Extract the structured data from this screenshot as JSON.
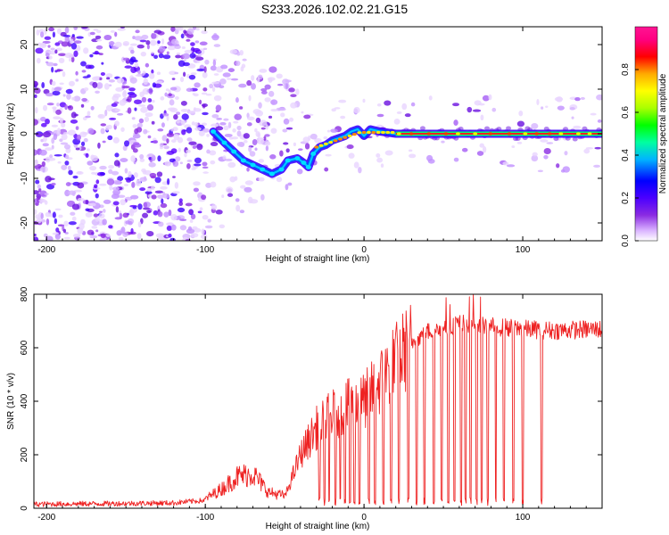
{
  "title": "S233.2026.102.02.21.G15",
  "colors": {
    "snr_line": "#ee2222",
    "track": "#00aa00",
    "background_scatter": "#8a2be2"
  },
  "chart_data": [
    {
      "type": "heatmap",
      "name": "spectrogram",
      "xlabel": "Height of straight line (km)",
      "ylabel": "Frequency (Hz)",
      "xlim": [
        -208,
        150
      ],
      "ylim": [
        -24,
        24
      ],
      "xticks": [
        -200,
        -100,
        0,
        100
      ],
      "xtick_labels": [
        "-200",
        "-100",
        "0",
        "100"
      ],
      "yticks": [
        -20,
        -10,
        0,
        10,
        20
      ],
      "ytick_labels": [
        "-20",
        "-10",
        "0",
        "10",
        "20"
      ],
      "colorbar": {
        "label": "Normalized spectral amplitude",
        "range": [
          0,
          1
        ],
        "ticks": [
          0,
          0.2,
          0.4,
          0.6,
          0.8
        ],
        "tick_labels": [
          "0.0",
          "0.2",
          "0.4",
          "0.6",
          "0.8"
        ],
        "colormap": [
          "#ffffff",
          "#d8b0ff",
          "#8a2be2",
          "#4b00ff",
          "#0000ff",
          "#00b4ff",
          "#00ffa0",
          "#00ff00",
          "#aaff00",
          "#ffff00",
          "#ffaa00",
          "#ff0000",
          "#ff0080",
          "#ff1493"
        ]
      },
      "track": {
        "description_free": true,
        "points": [
          {
            "x": -95,
            "y": 0.5
          },
          {
            "x": -88,
            "y": -2
          },
          {
            "x": -82,
            "y": -4
          },
          {
            "x": -76,
            "y": -6
          },
          {
            "x": -70,
            "y": -7
          },
          {
            "x": -64,
            "y": -8
          },
          {
            "x": -58,
            "y": -9
          },
          {
            "x": -52,
            "y": -8
          },
          {
            "x": -48,
            "y": -6
          },
          {
            "x": -42,
            "y": -5.5
          },
          {
            "x": -38,
            "y": -6.5
          },
          {
            "x": -35,
            "y": -7.5
          },
          {
            "x": -32,
            "y": -4.5
          },
          {
            "x": -28,
            "y": -3
          },
          {
            "x": -24,
            "y": -2.5
          },
          {
            "x": -20,
            "y": -1.5
          },
          {
            "x": -16,
            "y": -1
          },
          {
            "x": -12,
            "y": -0.5
          },
          {
            "x": -8,
            "y": 0.5
          },
          {
            "x": -4,
            "y": 1
          },
          {
            "x": 0,
            "y": -0.5
          },
          {
            "x": 4,
            "y": 1
          },
          {
            "x": 10,
            "y": 0.5
          },
          {
            "x": 20,
            "y": 0
          },
          {
            "x": 40,
            "y": 0
          },
          {
            "x": 80,
            "y": 0
          },
          {
            "x": 150,
            "y": 0
          }
        ],
        "hot_segments": [
          {
            "x0": -30,
            "x1": 10,
            "level": 0.7
          },
          {
            "x0": 20,
            "x1": 150,
            "level": 0.95
          }
        ]
      }
    },
    {
      "type": "line",
      "name": "snr",
      "xlabel": "Height of straight line (km)",
      "ylabel": "SNR (10 * v/v)",
      "xlim": [
        -208,
        150
      ],
      "ylim": [
        0,
        800
      ],
      "xticks": [
        -200,
        -100,
        0,
        100
      ],
      "xtick_labels": [
        "-200",
        "-100",
        "0",
        "100"
      ],
      "yticks": [
        0,
        200,
        400,
        600,
        800
      ],
      "ytick_labels": [
        "0",
        "200",
        "400",
        "600",
        "800"
      ],
      "envelope": [
        {
          "x": -208,
          "y": 15
        },
        {
          "x": -150,
          "y": 18
        },
        {
          "x": -120,
          "y": 20
        },
        {
          "x": -100,
          "y": 30
        },
        {
          "x": -90,
          "y": 60
        },
        {
          "x": -80,
          "y": 100
        },
        {
          "x": -70,
          "y": 110
        },
        {
          "x": -60,
          "y": 50
        },
        {
          "x": -50,
          "y": 40
        },
        {
          "x": -40,
          "y": 200
        },
        {
          "x": -30,
          "y": 300
        },
        {
          "x": -20,
          "y": 350
        },
        {
          "x": -10,
          "y": 380
        },
        {
          "x": 0,
          "y": 400
        },
        {
          "x": 10,
          "y": 470
        },
        {
          "x": 20,
          "y": 550
        },
        {
          "x": 30,
          "y": 620
        },
        {
          "x": 40,
          "y": 660
        },
        {
          "x": 60,
          "y": 690
        },
        {
          "x": 80,
          "y": 680
        },
        {
          "x": 100,
          "y": 670
        },
        {
          "x": 120,
          "y": 665
        },
        {
          "x": 150,
          "y": 670
        }
      ],
      "dropouts": [
        -28,
        -25,
        -22,
        -18,
        -15,
        -12,
        -9,
        -6,
        -3,
        3,
        7,
        12,
        17,
        22,
        28,
        33,
        38,
        44,
        49,
        53,
        57,
        61,
        64,
        67,
        71,
        74,
        78,
        83,
        88,
        94,
        100,
        112
      ]
    }
  ]
}
